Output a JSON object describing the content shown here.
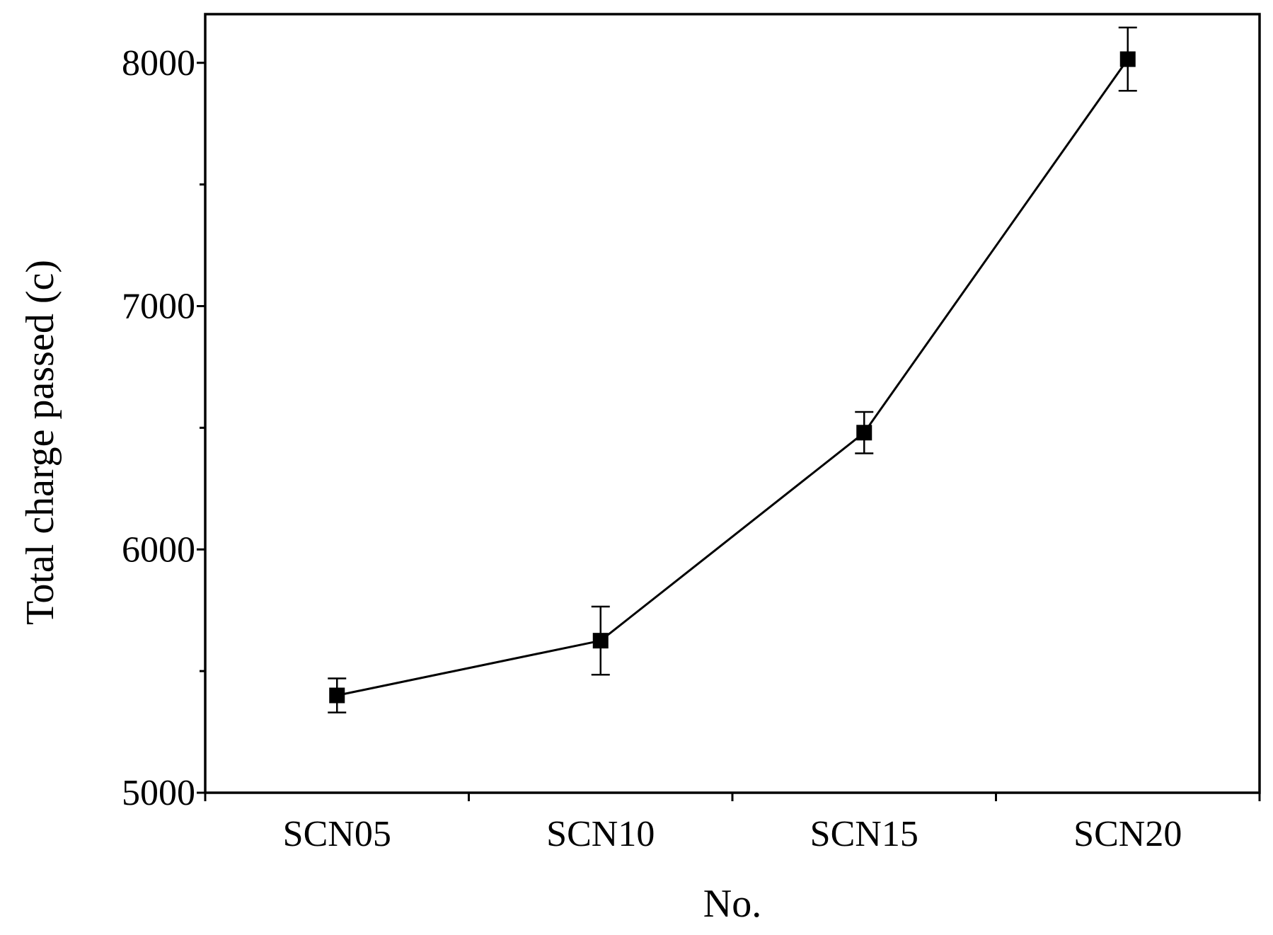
{
  "chart_data": {
    "type": "line",
    "title": "",
    "xlabel": "No.",
    "ylabel": "Total charge passed (c)",
    "categories": [
      "SCN05",
      "SCN10",
      "SCN15",
      "SCN20"
    ],
    "series": [
      {
        "values": [
          5400,
          5625,
          6480,
          8015
        ],
        "errors": [
          70,
          140,
          85,
          130
        ],
        "marker": "square",
        "color": "#000000"
      }
    ],
    "ylim": [
      5000,
      8200
    ],
    "yticks": [
      5000,
      6000,
      7000,
      8000
    ],
    "yticks_minor": [
      5500,
      6500,
      7500
    ],
    "grid": false,
    "legend": "none"
  }
}
